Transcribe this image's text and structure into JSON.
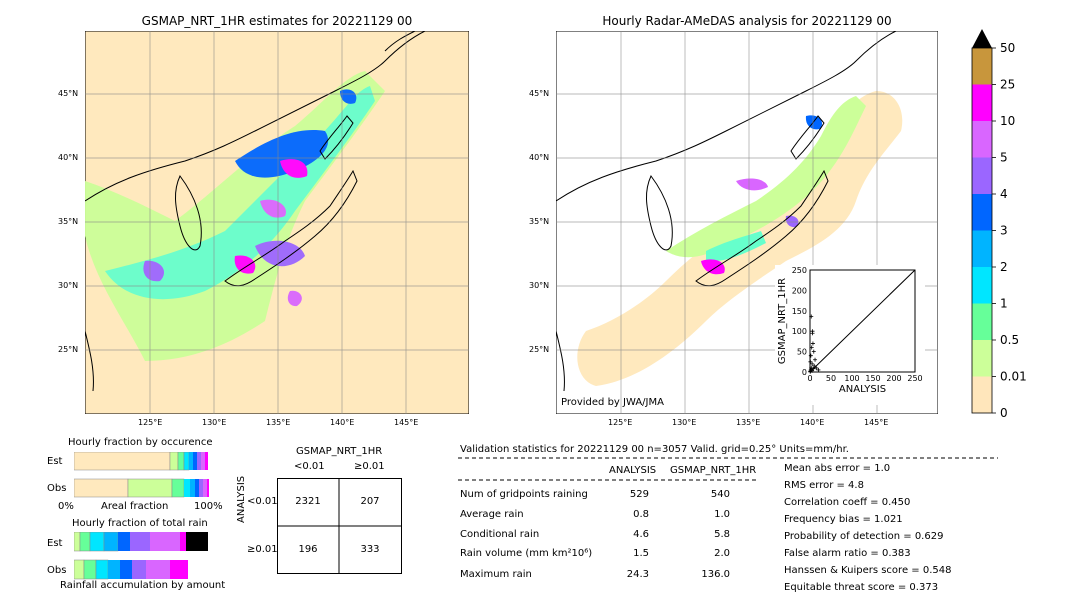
{
  "left_map": {
    "title": "GSMAP_NRT_1HR estimates for 20221129 00",
    "lat_labels": [
      "45°N",
      "40°N",
      "35°N",
      "30°N",
      "25°N"
    ],
    "lon_labels": [
      "125°E",
      "130°E",
      "135°E",
      "140°E",
      "145°E"
    ]
  },
  "right_map": {
    "title": "Hourly Radar-AMeDAS analysis for 20221129 00",
    "lat_labels": [
      "45°N",
      "40°N",
      "35°N",
      "30°N",
      "25°N"
    ],
    "lon_labels": [
      "125°E",
      "130°E",
      "135°E",
      "140°E",
      "145°E"
    ],
    "credit": "Provided by JWA/JMA"
  },
  "colorbar": {
    "labels": [
      "50",
      "25",
      "10",
      "5",
      "4",
      "3",
      "2",
      "1",
      "0.5",
      "0.01",
      "0"
    ],
    "colors": [
      "#c8963c",
      "#ff00ff",
      "#d966ff",
      "#9b66ff",
      "#0066ff",
      "#00b4ff",
      "#00e6ff",
      "#66ff99",
      "#ccff99",
      "#ffe6bb"
    ]
  },
  "chart_data": [
    {
      "type": "scatter",
      "xlabel": "ANALYSIS",
      "ylabel": "GSMAP_NRT_1HR",
      "xlim": [
        0,
        250
      ],
      "ylim": [
        0,
        250
      ],
      "x_ticks": [
        "0",
        "50",
        "100",
        "150",
        "200",
        "250"
      ],
      "y_ticks": [
        "0",
        "50",
        "100",
        "150",
        "200",
        "250"
      ],
      "x": [
        0.5,
        1,
        2,
        3,
        5,
        8,
        10,
        12,
        15,
        4,
        6,
        3,
        2,
        1,
        7,
        9,
        5,
        20,
        6
      ],
      "y": [
        0.5,
        2,
        5,
        10,
        20,
        8,
        15,
        30,
        10,
        60,
        95,
        136,
        40,
        25,
        70,
        50,
        3,
        5,
        100
      ]
    },
    {
      "type": "bar",
      "title": "Hourly fraction by occurence",
      "rows": [
        "Est",
        "Obs"
      ],
      "xlabel": "Areal fraction",
      "x_left": "0%",
      "x_right": "100%"
    },
    {
      "type": "bar",
      "title": "Hourly fraction of total rain",
      "rows": [
        "Est",
        "Obs"
      ],
      "xlabel": "Rainfall accumulation by amount"
    },
    {
      "type": "table",
      "title": "GSMAP_NRT_1HR",
      "col_headers": [
        "<0.01",
        "≥0.01"
      ],
      "row_headers": [
        "<0.01",
        "≥0.01"
      ],
      "row_axis_label": "ANALYSIS",
      "cells": [
        [
          "2321",
          "207"
        ],
        [
          "196",
          "333"
        ]
      ]
    }
  ],
  "validation": {
    "header": "Validation statistics for 20221129 00  n=3057 Valid. grid=0.25° Units=mm/hr.",
    "col_analysis": "ANALYSIS",
    "col_gsmap": "GSMAP_NRT_1HR",
    "rows": [
      {
        "label": "Num of gridpoints raining",
        "analysis": "529",
        "gsmap": "540"
      },
      {
        "label": "Average rain",
        "analysis": "0.8",
        "gsmap": "1.0"
      },
      {
        "label": "Conditional rain",
        "analysis": "4.6",
        "gsmap": "5.8"
      },
      {
        "label": "Rain volume (mm km²10⁶)",
        "analysis": "1.5",
        "gsmap": "2.0"
      },
      {
        "label": "Maximum rain",
        "analysis": "24.3",
        "gsmap": "136.0"
      }
    ],
    "scores": [
      "Mean abs error =    1.0",
      "RMS error =    4.8",
      "Correlation coeff =  0.450",
      "Frequency bias =  1.021",
      "Probability of detection =  0.629",
      "False alarm ratio =  0.383",
      "Hanssen & Kuipers score =  0.548",
      "Equitable threat score =  0.373"
    ]
  }
}
